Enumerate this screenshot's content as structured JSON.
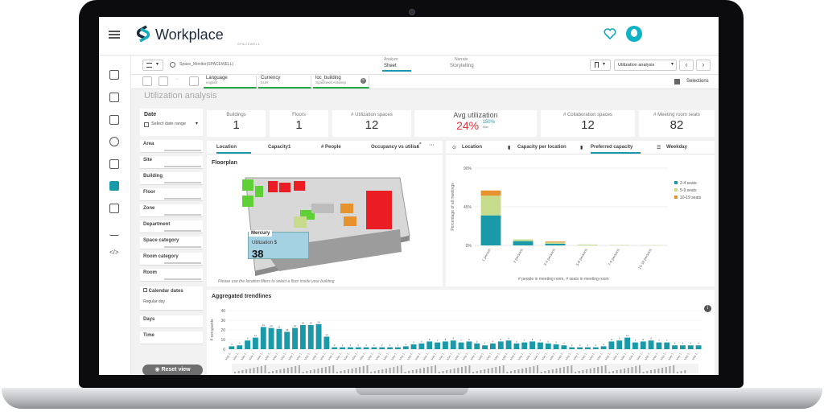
{
  "app": {
    "brand": "Workplace",
    "brand_sub": "SPACEWELL"
  },
  "toolbar": {
    "app_name": "Space_Monitor(SPACEWELL)",
    "analyze_label": "Analyze",
    "sheet_label": "Sheet",
    "narrate_label": "Narrate",
    "storytelling_label": "Storytelling",
    "sheet_dropdown": "Utilization analysis",
    "selections_label": "Selections"
  },
  "selections_bar": [
    {
      "field": "Language",
      "value": "english"
    },
    {
      "field": "Currency",
      "value": "EUR"
    },
    {
      "field": "loc_building",
      "value": "Spacewell Antwerp"
    }
  ],
  "sheet_title": "Utilization analysis",
  "filters": {
    "date_label": "Date",
    "date_placeholder": "Select date range",
    "items": [
      "Area",
      "Site",
      "Building",
      "Floor",
      "Zone",
      "Department",
      "Space category",
      "Room category",
      "Room"
    ],
    "calendar_label": "Calendar dates",
    "calendar_value": "Regular day",
    "days_label": "Days",
    "time_label": "Time",
    "reset_label": "Reset view"
  },
  "kpis": [
    {
      "label": "Buildings",
      "value": "1"
    },
    {
      "label": "Floors",
      "value": "1"
    },
    {
      "label": "# Utilization spaces",
      "value": "12"
    },
    {
      "label": "# Collaboration spaces",
      "value": "12"
    },
    {
      "label": "# Meeting room seats",
      "value": "82"
    }
  ],
  "avg_util": {
    "label": "Avg utilization",
    "value": "24%",
    "max_value": "150%",
    "max_label": "Max"
  },
  "floorplan": {
    "tabs": [
      "Location",
      "Capacity1",
      "# People",
      "Occupancy vs utilisa"
    ],
    "title": "Floorplan",
    "tooltip_room": "Mercury",
    "tooltip_label": "Utilization $",
    "tooltip_value": "38",
    "hint": "Please use the location filters to select a floor inside your building"
  },
  "capacity_chart": {
    "tabs": [
      "Location",
      "Capacity per location",
      "Preferred capacity",
      "Weekday"
    ],
    "legend_note": "# people in meeting room, # seats in meeting room"
  },
  "trend_chart": {
    "title": "Aggregated trendlines"
  },
  "colors": {
    "teal": "#1a9aa8",
    "green": "#c6dc8c",
    "orange": "#e8922e",
    "red": "#ea1c24",
    "lime": "#5fd035"
  },
  "chart_data": [
    {
      "type": "bar",
      "stacked": true,
      "categories": [
        "1 person",
        "2 persons",
        "3-4 persons",
        "5-6 persons",
        "7-9 persons",
        "10-18 persons"
      ],
      "series": [
        {
          "name": "2-4 seats",
          "values": [
            35,
            5,
            2,
            0,
            0,
            0
          ]
        },
        {
          "name": "5-9 seats",
          "values": [
            23,
            2,
            1.5,
            1,
            0.5,
            0.3
          ]
        },
        {
          "name": "10-19 seats",
          "values": [
            6,
            0,
            1,
            0,
            0,
            0
          ]
        }
      ],
      "ylabel": "Percentage of all meetings",
      "yticks": [
        "90%",
        "45%",
        "0%"
      ],
      "ylim": [
        0,
        90
      ]
    },
    {
      "type": "bar",
      "title": "Aggregated trendlines",
      "ylabel": "# occupants",
      "yticks": [
        "40",
        "30",
        "20",
        "10",
        "0"
      ],
      "ylim": [
        0,
        40
      ],
      "x_label_prefix": "May 1...",
      "values": [
        3,
        4,
        9,
        12,
        23,
        22,
        21,
        18,
        22,
        25,
        25,
        26,
        13,
        2,
        2,
        2,
        2,
        2,
        2,
        2,
        2,
        2,
        3,
        5,
        6,
        8,
        7,
        8,
        9,
        7,
        8,
        6,
        4,
        6,
        8,
        9,
        6,
        7,
        8,
        7,
        6,
        5,
        4,
        2,
        2,
        2,
        2,
        3,
        8,
        9,
        12,
        7,
        8,
        9,
        7,
        7,
        4,
        4,
        4,
        4
      ]
    }
  ]
}
